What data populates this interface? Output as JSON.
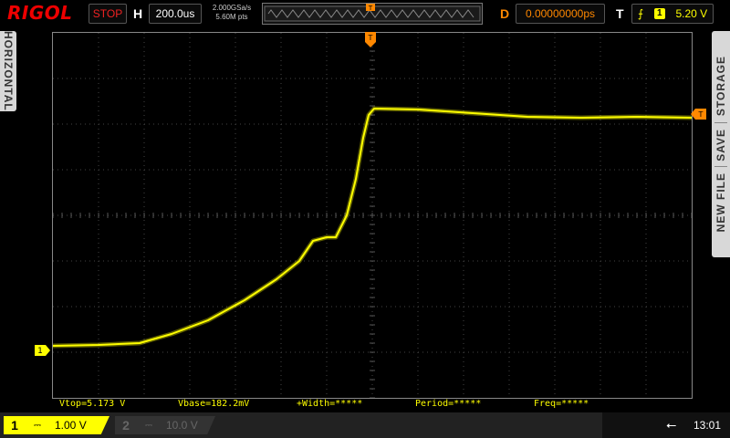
{
  "brand": "RIGOL",
  "run_state": "STOP",
  "horizontal": {
    "label": "H",
    "timebase": "200.0us",
    "sample_rate": "2.000GSa/s",
    "memory": "5.60M pts"
  },
  "delay": {
    "label": "D",
    "value": "0.00000000ps"
  },
  "trigger": {
    "label": "T",
    "slope_icon": "rising-edge-icon",
    "source": "1",
    "level": "5.20 V"
  },
  "left_tab": "HORIZONTAL",
  "right_tabs": [
    "STORAGE",
    "SAVE",
    "NEW FILE"
  ],
  "measurements": {
    "vtop": "Vtop=5.173 V",
    "vbase": "Vbase=182.2mV",
    "width": "+Width=*****",
    "period": "Period=*****",
    "freq": "Freq=*****"
  },
  "channels": [
    {
      "num": "1",
      "coupling": "⎓",
      "scale": "1.00 V",
      "active": true
    },
    {
      "num": "2",
      "coupling": "⎓",
      "scale": "10.0 V",
      "active": false
    }
  ],
  "clock": "13:01",
  "markers": {
    "ch1": "1",
    "trig_level": "T",
    "trig_pos": "T"
  },
  "colors": {
    "ch1": "#ffff00",
    "trigger": "#ff8000",
    "brand": "#e00000"
  }
}
